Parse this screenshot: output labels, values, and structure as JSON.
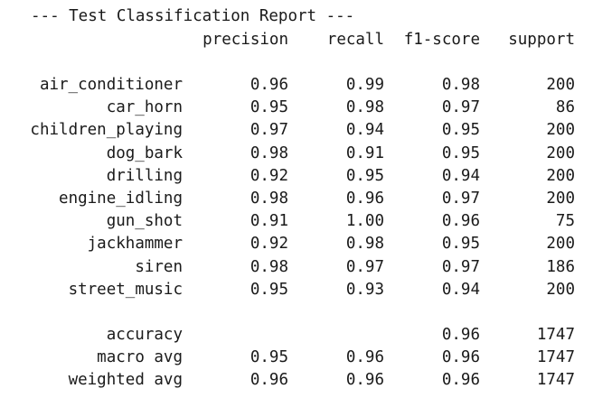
{
  "title": "--- Test Classification Report ---",
  "headers": {
    "precision": "precision",
    "recall": "recall",
    "f1": "f1-score",
    "support": "support"
  },
  "classes": [
    {
      "label": "air_conditioner",
      "precision": "0.96",
      "recall": "0.99",
      "f1": "0.98",
      "support": "200"
    },
    {
      "label": "car_horn",
      "precision": "0.95",
      "recall": "0.98",
      "f1": "0.97",
      "support": "86"
    },
    {
      "label": "children_playing",
      "precision": "0.97",
      "recall": "0.94",
      "f1": "0.95",
      "support": "200"
    },
    {
      "label": "dog_bark",
      "precision": "0.98",
      "recall": "0.91",
      "f1": "0.95",
      "support": "200"
    },
    {
      "label": "drilling",
      "precision": "0.92",
      "recall": "0.95",
      "f1": "0.94",
      "support": "200"
    },
    {
      "label": "engine_idling",
      "precision": "0.98",
      "recall": "0.96",
      "f1": "0.97",
      "support": "200"
    },
    {
      "label": "gun_shot",
      "precision": "0.91",
      "recall": "1.00",
      "f1": "0.96",
      "support": "75"
    },
    {
      "label": "jackhammer",
      "precision": "0.92",
      "recall": "0.98",
      "f1": "0.95",
      "support": "200"
    },
    {
      "label": "siren",
      "precision": "0.98",
      "recall": "0.97",
      "f1": "0.97",
      "support": "186"
    },
    {
      "label": "street_music",
      "precision": "0.95",
      "recall": "0.93",
      "f1": "0.94",
      "support": "200"
    }
  ],
  "summary": [
    {
      "label": "accuracy",
      "precision": "",
      "recall": "",
      "f1": "0.96",
      "support": "1747"
    },
    {
      "label": "macro avg",
      "precision": "0.95",
      "recall": "0.96",
      "f1": "0.96",
      "support": "1747"
    },
    {
      "label": "weighted avg",
      "precision": "0.96",
      "recall": "0.96",
      "f1": "0.96",
      "support": "1747"
    }
  ]
}
